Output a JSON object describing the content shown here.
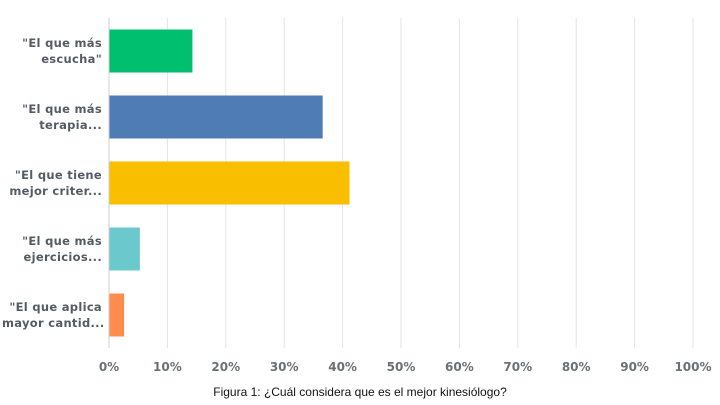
{
  "caption": "Figura 1: ¿Cuál considera que es el mejor kinesiólogo?",
  "chart_data": {
    "type": "bar",
    "orientation": "horizontal",
    "categories": [
      [
        "\"El que más",
        "escucha\""
      ],
      [
        "\"El que más",
        "terapia..."
      ],
      [
        "\"El que tiene",
        "mejor criter..."
      ],
      [
        "\"El que más",
        "ejercicios..."
      ],
      [
        "\"El que aplica",
        "mayor cantid..."
      ]
    ],
    "values": [
      14.2,
      36.5,
      41.1,
      5.2,
      2.5
    ],
    "colors": [
      "#00bf6f",
      "#507cb6",
      "#f9be00",
      "#6bc8cd",
      "#ff8b4f"
    ],
    "xlim": [
      0,
      100
    ],
    "xticks": [
      "0%",
      "10%",
      "20%",
      "30%",
      "40%",
      "50%",
      "60%",
      "70%",
      "80%",
      "90%",
      "100%"
    ],
    "grid": true,
    "xlabel": "",
    "ylabel": ""
  }
}
